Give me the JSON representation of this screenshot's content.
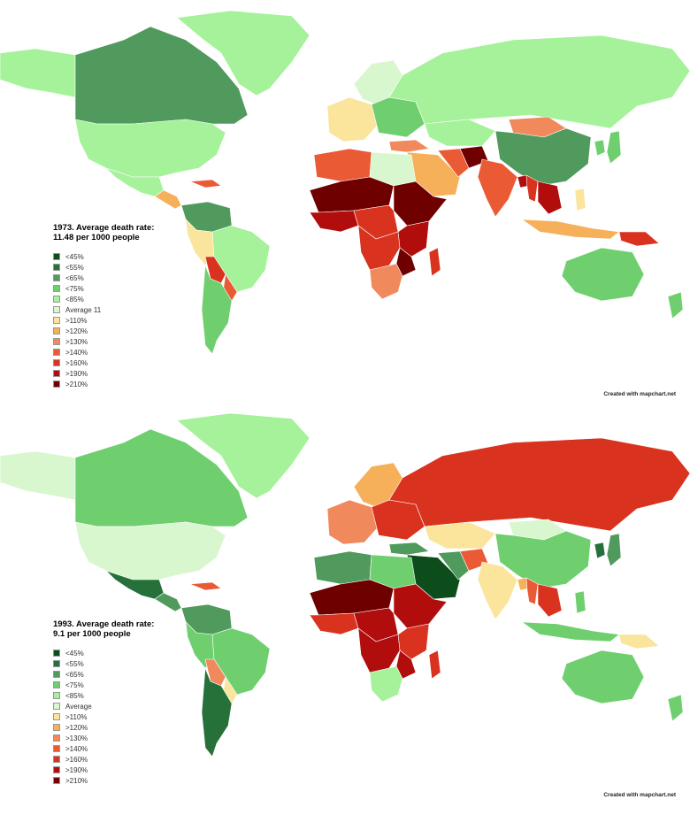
{
  "legend_scale": [
    {
      "key": "lt45",
      "label": "<45%",
      "color": "#0d4d1c"
    },
    {
      "key": "lt55",
      "label": "<55%",
      "color": "#26703a"
    },
    {
      "key": "lt65",
      "label": "<65%",
      "color": "#4f9a5c"
    },
    {
      "key": "lt75",
      "label": "<75%",
      "color": "#6fcf6f"
    },
    {
      "key": "lt85",
      "label": "<85%",
      "color": "#a5f29a"
    },
    {
      "key": "avg",
      "label": "Average",
      "color": "#d8f7cf"
    },
    {
      "key": "gt110",
      "label": ">110%",
      "color": "#fbe49c"
    },
    {
      "key": "gt120",
      "label": ">120%",
      "color": "#f6b05a"
    },
    {
      "key": "gt130",
      "label": ">130%",
      "color": "#f08a5d"
    },
    {
      "key": "gt140",
      "label": ">140%",
      "color": "#ea5a35"
    },
    {
      "key": "gt160",
      "label": ">160%",
      "color": "#d9321f"
    },
    {
      "key": "gt190",
      "label": ">190%",
      "color": "#b10d0d"
    },
    {
      "key": "gt210",
      "label": ">210%",
      "color": "#6e0000"
    }
  ],
  "maps": [
    {
      "title_line1": "1973. Average death rate:",
      "title_line2": "11.48 per 1000 people",
      "average_label": "Average 11",
      "credit": "Created with mapchart.net",
      "regions": {
        "greenland": "lt85",
        "canada": "lt65",
        "usa": "lt85",
        "alaska": "lt85",
        "mexico": "lt85",
        "central_america": "gt120",
        "caribbean": "gt140",
        "colombia_venezuela": "lt65",
        "brazil": "lt85",
        "peru": "gt110",
        "bolivia": "gt160",
        "chile_argentina": "lt75",
        "paraguay": "gt140",
        "scandinavia": "avg",
        "western_europe": "gt110",
        "eastern_europe": "lt75",
        "russia": "lt85",
        "mongolia": "gt130",
        "china": "lt65",
        "japan": "lt75",
        "korea": "lt75",
        "kazakhstan": "lt85",
        "middle_east": "gt120",
        "turkey": "gt130",
        "iran": "gt140",
        "afghanistan": "gt210",
        "india": "gt140",
        "bangladesh": "gt190",
        "myanmar": "gt160",
        "indochina": "gt190",
        "indonesia": "gt120",
        "philippines": "gt110",
        "png": "gt160",
        "australia": "lt75",
        "new_zealand": "lt75",
        "north_africa": "gt140",
        "egypt_libya": "avg",
        "sahel": "gt210",
        "west_africa": "gt190",
        "central_africa": "gt160",
        "east_africa": "gt190",
        "ethiopia_somalia": "gt210",
        "angola_congo": "gt160",
        "southern_africa": "gt130",
        "madagascar": "gt160",
        "mozambique": "gt210"
      }
    },
    {
      "title_line1": "1993. Average death rate:",
      "title_line2": "9.1 per 1000 people",
      "average_label": "Average",
      "credit": "Created with mapchart.net",
      "regions": {
        "greenland": "lt85",
        "canada": "lt75",
        "usa": "avg",
        "alaska": "avg",
        "mexico": "lt55",
        "central_america": "lt65",
        "caribbean": "gt140",
        "colombia_venezuela": "lt65",
        "brazil": "lt75",
        "peru": "lt75",
        "bolivia": "gt130",
        "chile_argentina": "lt55",
        "paraguay": "gt110",
        "scandinavia": "gt120",
        "western_europe": "gt130",
        "eastern_europe": "gt160",
        "russia": "gt160",
        "mongolia": "avg",
        "china": "lt75",
        "japan": "lt65",
        "korea": "lt55",
        "kazakhstan": "gt110",
        "middle_east": "lt45",
        "turkey": "lt65",
        "iran": "lt65",
        "afghanistan": "gt140",
        "india": "gt110",
        "bangladesh": "gt120",
        "myanmar": "gt140",
        "indochina": "gt160",
        "indonesia": "lt75",
        "philippines": "lt75",
        "png": "gt110",
        "australia": "lt75",
        "new_zealand": "lt75",
        "north_africa": "lt65",
        "egypt_libya": "lt75",
        "sahel": "gt210",
        "west_africa": "gt160",
        "central_africa": "gt190",
        "east_africa": "gt160",
        "ethiopia_somalia": "gt190",
        "angola_congo": "gt190",
        "southern_africa": "lt85",
        "madagascar": "gt160",
        "mozambique": "gt190"
      }
    }
  ]
}
